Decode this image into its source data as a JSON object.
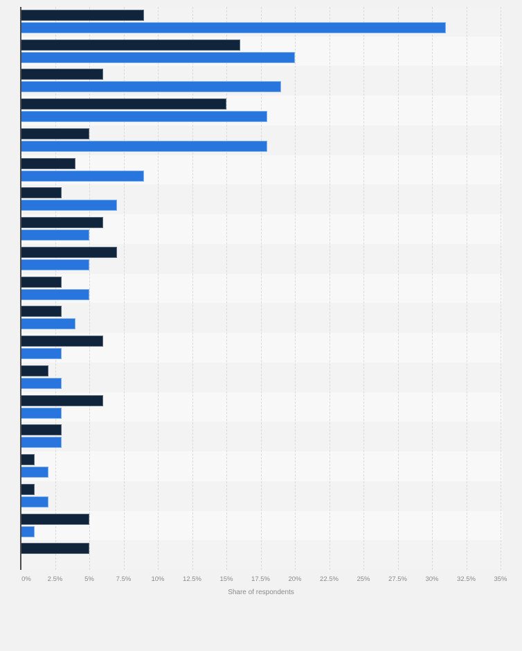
{
  "chart_data": {
    "type": "bar",
    "orientation": "horizontal",
    "title": "",
    "xlabel": "Share of respondents",
    "ylabel": "",
    "xlim": [
      0,
      35
    ],
    "x_ticks": [
      "0%",
      "2.5%",
      "5%",
      "7.5%",
      "10%",
      "12.5%",
      "15%",
      "17.5%",
      "20%",
      "22.5%",
      "25%",
      "27.5%",
      "30%",
      "32.5%",
      "35%"
    ],
    "grid": true,
    "legend": "none visible",
    "categories": [
      "",
      "",
      "",
      "",
      "",
      "",
      "",
      "",
      "",
      "",
      "",
      "",
      "",
      "",
      "",
      "",
      "",
      "",
      ""
    ],
    "series": [
      {
        "name": "Series 1 (dark navy)",
        "color": "#10243c",
        "values": [
          9,
          16,
          6,
          15,
          5,
          4,
          3,
          6,
          7,
          3,
          3,
          6,
          2,
          6,
          3,
          1,
          1,
          5,
          5
        ]
      },
      {
        "name": "Series 2 (blue)",
        "color": "#2876dd",
        "values": [
          31,
          20,
          19,
          18,
          18,
          9,
          7,
          5,
          5,
          5,
          4,
          3,
          3,
          3,
          3,
          2,
          2,
          1,
          0
        ]
      }
    ]
  },
  "colors": {
    "background": "#f2f2f2",
    "band_dark": "#f3f3f3",
    "band_light": "#f8f8f8",
    "axis_text": "#8a8a8a"
  }
}
